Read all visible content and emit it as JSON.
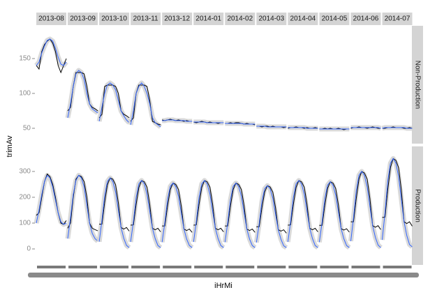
{
  "chart_data": {
    "type": "line",
    "xlabel": "iHrMi",
    "ylabel": "trimAv",
    "x": [
      0,
      2,
      4,
      6,
      8,
      10,
      12,
      14,
      16,
      18,
      20,
      22
    ],
    "xlim": [
      0,
      22
    ],
    "line_color": "#000000",
    "fit_color": "#3366ff",
    "columns": [
      "2013-08",
      "2013-09",
      "2013-10",
      "2013-11",
      "2013-12",
      "2014-01",
      "2014-02",
      "2014-03",
      "2014-04",
      "2014-05",
      "2014-06",
      "2014-07"
    ],
    "rows": [
      {
        "label": "Non-Production",
        "ylim": [
          28,
          197
        ],
        "yticks": [
          50,
          100,
          150
        ],
        "panels": [
          {
            "values": [
              140,
              135,
              160,
              170,
              175,
              178,
              172,
              160,
              140,
              130,
              140,
              150
            ],
            "fit": [
              140,
              145,
              158,
              168,
              176,
              178,
              175,
              165,
              152,
              142,
              140,
              145
            ]
          },
          {
            "values": [
              75,
              80,
              110,
              130,
              130,
              130,
              128,
              110,
              85,
              80,
              78,
              75
            ],
            "fit": [
              65,
              85,
              110,
              128,
              133,
              130,
              120,
              100,
              85,
              78,
              75,
              72
            ]
          },
          {
            "values": [
              65,
              70,
              110,
              112,
              112,
              112,
              110,
              100,
              75,
              70,
              68,
              65
            ],
            "fit": [
              60,
              80,
              100,
              112,
              115,
              112,
              105,
              90,
              75,
              68,
              62,
              58
            ]
          },
          {
            "values": [
              60,
              65,
              100,
              112,
              112,
              112,
              110,
              90,
              60,
              58,
              56,
              55
            ],
            "fit": [
              55,
              75,
              100,
              110,
              115,
              110,
              100,
              85,
              65,
              58,
              55,
              52
            ]
          },
          {
            "values": [
              62,
              61,
              62,
              63,
              62,
              61,
              62,
              61,
              60,
              61,
              60,
              60
            ],
            "fit": [
              61,
              61,
              62,
              62,
              62,
              61,
              61,
              61,
              61,
              60,
              60,
              60
            ]
          },
          {
            "values": [
              59,
              58,
              59,
              60,
              59,
              58,
              59,
              58,
              58,
              57,
              58,
              58
            ],
            "fit": [
              59,
              59,
              59,
              59,
              59,
              58,
              58,
              58,
              58,
              58,
              58,
              58
            ]
          },
          {
            "values": [
              57,
              57,
              58,
              57,
              58,
              58,
              57,
              56,
              57,
              56,
              56,
              55
            ],
            "fit": [
              57,
              57,
              57,
              57,
              57,
              57,
              57,
              56,
              56,
              56,
              56,
              56
            ]
          },
          {
            "values": [
              53,
              53,
              52,
              53,
              53,
              52,
              53,
              52,
              52,
              52,
              51,
              52
            ],
            "fit": [
              53,
              53,
              53,
              53,
              52,
              52,
              52,
              52,
              52,
              52,
              52,
              52
            ]
          },
          {
            "values": [
              50,
              51,
              51,
              52,
              51,
              51,
              50,
              51,
              50,
              50,
              51,
              50
            ],
            "fit": [
              51,
              51,
              51,
              51,
              51,
              51,
              51,
              50,
              50,
              50,
              50,
              50
            ]
          },
          {
            "values": [
              49,
              49,
              50,
              49,
              50,
              49,
              49,
              50,
              49,
              48,
              49,
              49
            ],
            "fit": [
              49,
              49,
              49,
              49,
              49,
              49,
              49,
              49,
              49,
              49,
              49,
              49
            ]
          },
          {
            "values": [
              50,
              51,
              51,
              52,
              51,
              51,
              50,
              51,
              52,
              51,
              50,
              50
            ],
            "fit": [
              51,
              51,
              51,
              51,
              51,
              51,
              51,
              51,
              51,
              51,
              51,
              50
            ]
          },
          {
            "values": [
              50,
              50,
              51,
              51,
              52,
              51,
              51,
              51,
              50,
              50,
              51,
              50
            ],
            "fit": [
              50,
              51,
              51,
              51,
              51,
              51,
              51,
              51,
              51,
              50,
              50,
              50
            ]
          }
        ]
      },
      {
        "label": "Production",
        "ylim": [
          -62,
          397
        ],
        "yticks": [
          0,
          100,
          200,
          300
        ],
        "panels": [
          {
            "values": [
              130,
              140,
              200,
              260,
              290,
              280,
              250,
              200,
              140,
              100,
              95,
              110
            ],
            "fit": [
              100,
              150,
              210,
              260,
              285,
              275,
              240,
              190,
              140,
              105,
              95,
              100
            ]
          },
          {
            "values": [
              80,
              100,
              200,
              270,
              285,
              280,
              260,
              200,
              100,
              80,
              75,
              70
            ],
            "fit": [
              40,
              120,
              210,
              265,
              285,
              275,
              240,
              170,
              100,
              60,
              40,
              30
            ]
          },
          {
            "values": [
              96,
              96,
              179,
              248,
              275,
              270,
              248,
              179,
              83,
              77,
              83,
              69
            ],
            "fit": [
              28,
              110,
              206,
              261,
              275,
              261,
              220,
              151,
              83,
              41,
              14,
              5
            ]
          },
          {
            "values": [
              92,
              93,
              172,
              238,
              265,
              260,
              239,
              172,
              80,
              74,
              80,
              66
            ],
            "fit": [
              27,
              106,
              199,
              252,
              265,
              252,
              212,
              146,
              80,
              40,
              13,
              5
            ]
          },
          {
            "values": [
              89,
              89,
              166,
              230,
              255,
              250,
              230,
              166,
              77,
              71,
              77,
              64
            ],
            "fit": [
              26,
              102,
              191,
              242,
              255,
              242,
              204,
              140,
              77,
              38,
              13,
              5
            ]
          },
          {
            "values": [
              92,
              93,
              172,
              238,
              265,
              260,
              239,
              172,
              80,
              74,
              80,
              66
            ],
            "fit": [
              27,
              106,
              199,
              252,
              265,
              252,
              212,
              146,
              80,
              40,
              13,
              5
            ]
          },
          {
            "values": [
              89,
              89,
              166,
              230,
              255,
              250,
              230,
              166,
              77,
              71,
              77,
              64
            ],
            "fit": [
              26,
              102,
              191,
              242,
              255,
              242,
              204,
              140,
              77,
              38,
              13,
              5
            ]
          },
          {
            "values": [
              86,
              86,
              159,
              220,
              245,
              240,
              220,
              159,
              74,
              69,
              74,
              61
            ],
            "fit": [
              25,
              98,
              184,
              233,
              245,
              233,
              196,
              135,
              74,
              37,
              12,
              5
            ]
          },
          {
            "values": [
              92,
              93,
              172,
              238,
              265,
              260,
              239,
              172,
              80,
              74,
              80,
              66
            ],
            "fit": [
              27,
              106,
              199,
              252,
              265,
              252,
              212,
              146,
              80,
              40,
              13,
              5
            ]
          },
          {
            "values": [
              91,
              91,
              169,
              234,
              260,
              255,
              234,
              169,
              78,
              73,
              78,
              65
            ],
            "fit": [
              26,
              104,
              195,
              247,
              260,
              247,
              208,
              143,
              78,
              39,
              13,
              5
            ]
          },
          {
            "values": [
              105,
              105,
              195,
              270,
              300,
              294,
              270,
              195,
              90,
              84,
              90,
              75
            ],
            "fit": [
              30,
              120,
              225,
              285,
              300,
              285,
              240,
              165,
              90,
              45,
              15,
              5
            ]
          },
          {
            "values": [
              122,
              123,
              228,
              315,
              350,
              343,
              315,
              228,
              105,
              98,
              105,
              88
            ],
            "fit": [
              35,
              140,
              262,
              332,
              350,
              332,
              280,
              192,
              105,
              52,
              17,
              8
            ]
          }
        ]
      }
    ]
  }
}
